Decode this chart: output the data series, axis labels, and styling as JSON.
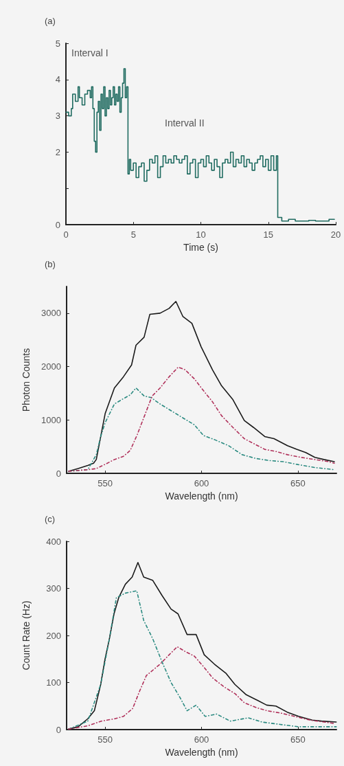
{
  "chart_data": [
    {
      "type": "step",
      "title": "(a)",
      "xlabel": "Time (s)",
      "xlim": [
        0,
        20
      ],
      "xticks": [
        0,
        5,
        10,
        15,
        20
      ],
      "ylim": [
        0,
        5
      ],
      "yticks": [
        0,
        {
          "value": 1,
          "label": null
        },
        2,
        3,
        4,
        5
      ],
      "marker": "none",
      "annotations": [
        "Interval I",
        "Interval II"
      ],
      "series": [
        {
          "color": "#1f6b60",
          "line_style": "solid",
          "x": [
            0.0,
            0.2,
            0.4,
            0.5,
            0.7,
            0.9,
            1.0,
            1.2,
            1.4,
            1.6,
            1.8,
            1.9,
            2.0,
            2.1,
            2.2,
            2.3,
            2.4,
            2.5,
            2.6,
            2.7,
            2.8,
            2.9,
            3.0,
            3.1,
            3.2,
            3.3,
            3.4,
            3.5,
            3.6,
            3.7,
            3.8,
            3.9,
            4.0,
            4.1,
            4.2,
            4.3,
            4.4,
            4.5,
            4.6,
            4.7,
            4.8,
            5.0,
            5.2,
            5.4,
            5.6,
            5.8,
            6.0,
            6.2,
            6.4,
            6.6,
            6.8,
            7.0,
            7.2,
            7.4,
            7.6,
            7.8,
            8.0,
            8.2,
            8.4,
            8.6,
            8.8,
            9.0,
            9.2,
            9.4,
            9.6,
            9.8,
            10.0,
            10.2,
            10.4,
            10.6,
            10.8,
            11.0,
            11.2,
            11.4,
            11.6,
            11.8,
            12.0,
            12.2,
            12.4,
            12.6,
            12.8,
            13.0,
            13.2,
            13.4,
            13.6,
            13.8,
            14.0,
            14.2,
            14.4,
            14.6,
            14.8,
            15.0,
            15.2,
            15.4,
            15.6,
            15.7,
            16.0,
            16.5,
            17.0,
            17.5,
            18.0,
            18.5,
            19.0,
            19.5,
            19.9
          ],
          "values": [
            3.1,
            3.0,
            3.2,
            3.6,
            3.4,
            3.8,
            3.5,
            3.3,
            3.6,
            3.7,
            3.5,
            3.8,
            3.2,
            2.3,
            2.0,
            3.1,
            3.4,
            2.6,
            3.6,
            3.2,
            3.8,
            3.0,
            3.5,
            3.2,
            3.7,
            3.3,
            3.5,
            3.8,
            3.3,
            3.6,
            3.4,
            3.8,
            3.1,
            3.5,
            3.9,
            4.3,
            3.5,
            3.8,
            1.4,
            1.8,
            1.5,
            1.7,
            1.3,
            1.6,
            1.7,
            1.2,
            1.5,
            1.8,
            1.7,
            1.9,
            1.3,
            1.6,
            1.9,
            1.7,
            1.8,
            1.7,
            1.9,
            1.8,
            1.7,
            1.8,
            1.9,
            1.4,
            1.7,
            1.8,
            1.3,
            1.7,
            1.8,
            1.6,
            1.9,
            1.7,
            1.5,
            1.8,
            1.6,
            1.3,
            1.7,
            1.8,
            1.7,
            2.0,
            1.6,
            1.8,
            1.7,
            1.9,
            1.6,
            1.8,
            1.7,
            1.5,
            1.7,
            1.8,
            1.9,
            1.6,
            1.8,
            1.5,
            1.9,
            1.5,
            1.9,
            0.2,
            0.1,
            0.15,
            0.1,
            0.1,
            0.12,
            0.1,
            0.1,
            0.15,
            0.15
          ]
        }
      ]
    },
    {
      "type": "line",
      "title": "(b)",
      "xlabel": "Wavelength (nm)",
      "ylabel": "Photon Counts",
      "xlim": [
        530,
        670
      ],
      "xticks": [
        550,
        600,
        650
      ],
      "ylim": [
        0,
        3500
      ],
      "yticks": [
        0,
        1000,
        2000,
        3000
      ],
      "marker": "none",
      "series": [
        {
          "color": "#1a1a1a",
          "line_style": "solid",
          "x": [
            531,
            536,
            541,
            544,
            545.4,
            547.7,
            550,
            554.8,
            559.5,
            563.7,
            566,
            570.2,
            573.2,
            578.5,
            583.2,
            586.7,
            590.3,
            595,
            599.8,
            605.7,
            610.4,
            616.3,
            622.2,
            627,
            632.8,
            637.6,
            644.6,
            649.4,
            654.1,
            658.8,
            663.5,
            668.9
          ],
          "values": [
            40,
            90,
            150,
            190,
            260,
            690,
            1120,
            1600,
            1810,
            2030,
            2400,
            2550,
            2980,
            3000,
            3090,
            3220,
            2940,
            2810,
            2370,
            1940,
            1640,
            1380,
            990,
            860,
            690,
            650,
            520,
            450,
            390,
            300,
            260,
            220
          ]
        },
        {
          "color": "#b0305a",
          "line_style": "dashdot",
          "x": [
            531,
            541,
            545.4,
            550,
            554.8,
            559.5,
            563,
            566.7,
            571.4,
            574.4,
            578.5,
            583.2,
            587.9,
            591.5,
            596.3,
            601,
            605.7,
            610.4,
            616.3,
            622.2,
            627,
            632.8,
            638.7,
            644.6,
            651.7,
            658.8,
            665.9,
            668.9
          ],
          "values": [
            40,
            70,
            90,
            170,
            260,
            320,
            430,
            730,
            1170,
            1450,
            1600,
            1810,
            1990,
            1940,
            1770,
            1550,
            1340,
            1080,
            860,
            650,
            560,
            450,
            410,
            350,
            300,
            260,
            220,
            190
          ]
        },
        {
          "color": "#2a8a80",
          "line_style": "dashdot",
          "x": [
            531,
            541,
            545.4,
            547.7,
            550,
            554.8,
            559.5,
            563,
            566,
            570.2,
            573.8,
            578.5,
            584.4,
            590.3,
            596.3,
            601,
            606.9,
            614,
            621.1,
            628.2,
            635.3,
            642.4,
            649.4,
            658.8,
            668.9
          ],
          "values": [
            40,
            70,
            350,
            690,
            950,
            1300,
            1400,
            1470,
            1600,
            1450,
            1420,
            1300,
            1170,
            1040,
            910,
            710,
            630,
            520,
            350,
            280,
            240,
            220,
            170,
            110,
            70
          ]
        }
      ]
    },
    {
      "type": "line",
      "title": "(c)",
      "xlabel": "Wavelength (nm)",
      "ylabel": "Count Rate (Hz)",
      "xlim": [
        530,
        670
      ],
      "xticks": [
        550,
        600,
        650
      ],
      "ylim": [
        0,
        400
      ],
      "yticks": [
        0,
        100,
        200,
        300,
        400
      ],
      "marker": "none",
      "series": [
        {
          "color": "#1a1a1a",
          "line_style": "solid",
          "x": [
            531,
            536,
            541,
            544.4,
            547.7,
            549.9,
            552.2,
            554.6,
            557,
            560.5,
            564,
            567,
            570,
            574.7,
            579.5,
            584.2,
            587.8,
            592.5,
            597.2,
            601.4,
            606.7,
            612.6,
            617.3,
            623.2,
            629.1,
            633.8,
            638.6,
            644.5,
            650.4,
            657.5,
            662.2,
            669.9
          ],
          "values": [
            1,
            6,
            23,
            40,
            96,
            149,
            193,
            246,
            280,
            309,
            324,
            355,
            324,
            317,
            285,
            256,
            246,
            202,
            202,
            159,
            139,
            120,
            96,
            74,
            62,
            52,
            50,
            37,
            28,
            20,
            18,
            16
          ]
        },
        {
          "color": "#b0305a",
          "line_style": "dashdot",
          "x": [
            531,
            541,
            548,
            555,
            559.5,
            564.3,
            567.8,
            571.4,
            578.5,
            583.2,
            587.4,
            591.5,
            596.3,
            601,
            605.7,
            611.6,
            617.5,
            622.2,
            628.2,
            634.1,
            641.2,
            648.3,
            656.5,
            668.9
          ],
          "values": [
            1,
            8,
            18,
            23,
            28,
            45,
            81,
            115,
            139,
            159,
            176,
            166,
            156,
            134,
            110,
            91,
            76,
            57,
            47,
            40,
            35,
            28,
            20,
            13
          ]
        },
        {
          "color": "#2a8a80",
          "line_style": "dashdot",
          "x": [
            531,
            541,
            547.7,
            552.2,
            555.8,
            560.5,
            566.4,
            570,
            574.7,
            579.5,
            584.2,
            589,
            592.5,
            597.2,
            601.9,
            607.8,
            614.9,
            624.3,
            631.4,
            640.8,
            650.2,
            669.9
          ],
          "values": [
            1,
            18,
            96,
            193,
            280,
            290,
            295,
            232,
            193,
            144,
            100,
            67,
            40,
            52,
            28,
            33,
            18,
            25,
            16,
            11,
            6,
            6
          ]
        }
      ]
    }
  ]
}
